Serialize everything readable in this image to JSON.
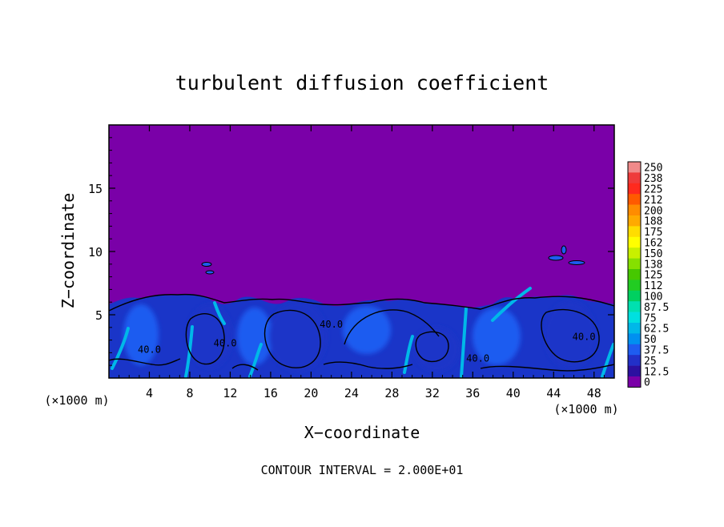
{
  "chart_data": {
    "type": "heatmap",
    "title": "turbulent diffusion coefficient",
    "xlabel": "X−coordinate",
    "ylabel": "Z−coordinate",
    "x_unit_left": "(×1000 m)",
    "x_unit_right": "(×1000 m)",
    "footer": "CONTOUR INTERVAL = 2.000E+01",
    "xlim": [
      0,
      50
    ],
    "ylim": [
      0,
      20
    ],
    "x_ticks": [
      4,
      8,
      12,
      16,
      20,
      24,
      28,
      32,
      36,
      40,
      44,
      48
    ],
    "y_ticks": [
      5,
      10,
      15
    ],
    "contour_labels": [
      {
        "text": "40.0",
        "x": 4.0,
        "y": 2.0
      },
      {
        "text": "40.0",
        "x": 11.5,
        "y": 2.5
      },
      {
        "text": "40.0",
        "x": 22.0,
        "y": 4.0
      },
      {
        "text": "40.0",
        "x": 36.5,
        "y": 1.3
      },
      {
        "text": "40.0",
        "x": 47.0,
        "y": 3.0
      }
    ],
    "colorbar": {
      "labels": [
        "250",
        "238",
        "225",
        "212",
        "200",
        "188",
        "175",
        "162",
        "150",
        "138",
        "125",
        "112",
        "100",
        "87.5",
        "75",
        "62.5",
        "50",
        "37.5",
        "25",
        "12.5",
        "0"
      ],
      "colors": [
        "#f08a8a",
        "#ef3b3b",
        "#ff2a1e",
        "#ff5a00",
        "#ff8c00",
        "#ffaa00",
        "#ffdd00",
        "#ffff00",
        "#c8f000",
        "#86e000",
        "#46c800",
        "#22cc22",
        "#00d060",
        "#00e0b0",
        "#00e0e0",
        "#00b8e8",
        "#0090f0",
        "#1e5cf0",
        "#2230c8",
        "#2c10a0",
        "#7a00a8"
      ]
    },
    "field_colors": {
      "background": "#7a00a8",
      "low": "#1a35c8",
      "mid": "#1e5cf0",
      "high": "#00b8e8"
    }
  }
}
